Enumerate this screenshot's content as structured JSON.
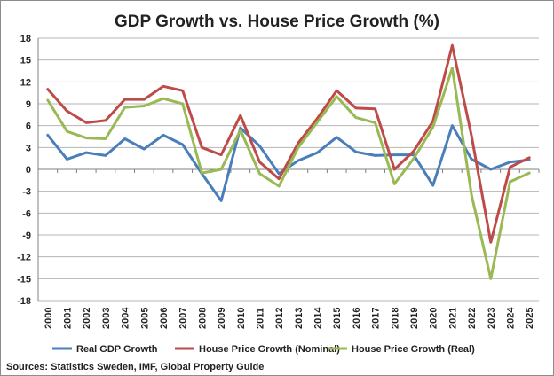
{
  "chart_data": {
    "type": "line",
    "title": "GDP Growth vs. House Price Growth (%)",
    "xlabel": "",
    "ylabel": "",
    "ylim": [
      -18,
      18
    ],
    "yticks": [
      18,
      15,
      12,
      9,
      6,
      3,
      0,
      -3,
      -6,
      -9,
      -12,
      -15,
      -18
    ],
    "ytick_labels": [
      "18",
      "15",
      "12",
      "9",
      "6",
      "3",
      "0",
      "-3",
      "-6",
      "-9",
      "-12",
      "-15",
      "-18"
    ],
    "grid": "horizontal",
    "legend_position": "bottom",
    "categories": [
      "2000",
      "2001",
      "2002",
      "2003",
      "2004",
      "2005",
      "2006",
      "2007",
      "2008",
      "2009",
      "2010",
      "2011",
      "2012",
      "2013",
      "2014",
      "2015",
      "2016",
      "2017",
      "2018",
      "2019",
      "2020",
      "2021",
      "2022",
      "2023",
      "2024",
      "2025"
    ],
    "series": [
      {
        "name": "Real GDP Growth",
        "color": "#4a7ebb",
        "values": [
          4.7,
          1.4,
          2.3,
          1.9,
          4.2,
          2.8,
          4.7,
          3.4,
          -0.6,
          -4.3,
          5.7,
          3.2,
          -0.6,
          1.2,
          2.3,
          4.4,
          2.4,
          1.9,
          2.0,
          2.0,
          -2.2,
          6.0,
          1.4,
          0.0,
          1.0,
          1.3
        ]
      },
      {
        "name": "House Price Growth (Nominal)",
        "color": "#be4b48",
        "values": [
          11.0,
          8.0,
          6.4,
          6.7,
          9.6,
          9.6,
          11.4,
          10.8,
          3.0,
          2.0,
          7.4,
          1.0,
          -1.3,
          3.6,
          7.0,
          10.8,
          8.4,
          8.3,
          0.0,
          2.5,
          6.6,
          17.0,
          4.6,
          -10.0,
          0.3,
          1.6
        ]
      },
      {
        "name": "House Price Growth (Real)",
        "color": "#98b954",
        "values": [
          9.5,
          5.2,
          4.3,
          4.2,
          8.5,
          8.7,
          9.7,
          9.0,
          -0.5,
          0.0,
          5.4,
          -0.6,
          -2.3,
          3.0,
          6.5,
          10.0,
          7.1,
          6.4,
          -2.0,
          1.5,
          5.8,
          13.9,
          -3.5,
          -15.0,
          -1.7,
          -0.5
        ]
      }
    ]
  },
  "source": "Sources: Statistics Sweden, IMF, Global Property Guide"
}
